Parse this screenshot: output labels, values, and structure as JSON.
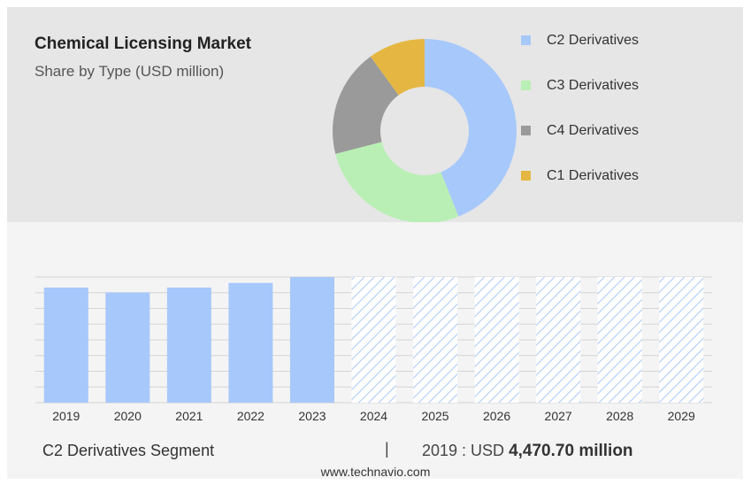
{
  "header": {
    "title": "Chemical Licensing Market",
    "subtitle": "Share by Type (USD million)"
  },
  "chart_data": [
    {
      "type": "pie",
      "categories": [
        "C2 Derivatives",
        "C3 Derivatives",
        "C4 Derivatives",
        "C1 Derivatives"
      ],
      "values": [
        44,
        27,
        19,
        10
      ],
      "colors": [
        "#a7c8fa",
        "#b9efb4",
        "#9a9a9a",
        "#e5b742"
      ]
    },
    {
      "type": "bar",
      "categories": [
        "2019",
        "2020",
        "2021",
        "2022",
        "2023",
        "2024",
        "2025",
        "2026",
        "2027",
        "2028",
        "2029"
      ],
      "values": [
        4470.7,
        4280,
        4470,
        4650,
        4880,
        null,
        null,
        null,
        null,
        null,
        null
      ],
      "forecast_from": "2024",
      "ylim": [
        0,
        4880
      ],
      "grid": true,
      "color": "#a7c8fa"
    }
  ],
  "footer": {
    "segment": "C2 Derivatives Segment",
    "separator": "|",
    "value_prefix": "2019 : USD",
    "value": "4,470.70 million",
    "source": "www.technavio.com"
  }
}
